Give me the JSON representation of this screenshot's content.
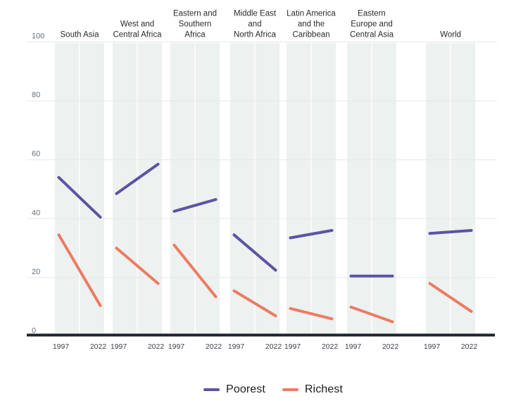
{
  "chart_data": {
    "type": "line",
    "subtype": "slope-graph-small-multiples",
    "title": "",
    "categories": [
      "1997",
      "2022"
    ],
    "ylim": [
      0,
      100
    ],
    "y_ticks": [
      0,
      20,
      40,
      60,
      80,
      100
    ],
    "y_tick_labels": [
      "0",
      "20",
      "40",
      "60",
      "80",
      "100"
    ],
    "grid": true,
    "legend_position": "bottom-center",
    "series_meta": [
      {
        "name": "Poorest",
        "color": "#5B54A4"
      },
      {
        "name": "Richest",
        "color": "#EC7B63"
      }
    ],
    "panels": [
      {
        "title": "South Asia",
        "title_lines": [
          "South Asia"
        ],
        "series": [
          {
            "name": "Poorest",
            "values": [
              54,
              40.5
            ]
          },
          {
            "name": "Richest",
            "values": [
              34.5,
              10.5
            ]
          }
        ]
      },
      {
        "title": "West and Central Africa",
        "title_lines": [
          "West and",
          "Central Africa"
        ],
        "series": [
          {
            "name": "Poorest",
            "values": [
              48.5,
              58.5
            ]
          },
          {
            "name": "Richest",
            "values": [
              30,
              18
            ]
          }
        ]
      },
      {
        "title": "Eastern and Southern Africa",
        "title_lines": [
          "Eastern and",
          "Southern",
          "Africa"
        ],
        "series": [
          {
            "name": "Poorest",
            "values": [
              42.5,
              46.5
            ]
          },
          {
            "name": "Richest",
            "values": [
              31,
              13.5
            ]
          }
        ]
      },
      {
        "title": "Middle East and North Africa",
        "title_lines": [
          "Middle East",
          "and",
          "North Africa"
        ],
        "series": [
          {
            "name": "Poorest",
            "values": [
              34.5,
              22.5
            ]
          },
          {
            "name": "Richest",
            "values": [
              15.5,
              7
            ]
          }
        ]
      },
      {
        "title": "Latin America and the Caribbean",
        "title_lines": [
          "Latin America",
          "and the",
          "Caribbean"
        ],
        "series": [
          {
            "name": "Poorest",
            "values": [
              33.5,
              36
            ]
          },
          {
            "name": "Richest",
            "values": [
              9.5,
              6
            ]
          }
        ]
      },
      {
        "title": "Eastern Europe and Central Asia",
        "title_lines": [
          "Eastern",
          "Europe and",
          "Central Asia"
        ],
        "series": [
          {
            "name": "Poorest",
            "values": [
              20.5,
              20.5
            ]
          },
          {
            "name": "Richest",
            "values": [
              10,
              5
            ]
          }
        ]
      },
      {
        "title": "World",
        "title_lines": [
          "World"
        ],
        "series": [
          {
            "name": "Poorest",
            "values": [
              35,
              36
            ]
          },
          {
            "name": "Richest",
            "values": [
              18,
              8.5
            ]
          }
        ]
      }
    ]
  },
  "legend": {
    "items": [
      {
        "label": "Poorest",
        "color": "#5B54A4"
      },
      {
        "label": "Richest",
        "color": "#EC7B63"
      }
    ]
  },
  "colors": {
    "poorest": "#5B54A4",
    "richest": "#EC7B63",
    "band": "#EDF1F0",
    "band_divider": "#FFFFFF",
    "gridline": "#E5EAE9",
    "axis": "#1F232D",
    "y_tick_label": "#67707A",
    "x_tick_label": "#3E434B",
    "panel_title": "#2A2B30",
    "background": "#FFFFFF"
  }
}
